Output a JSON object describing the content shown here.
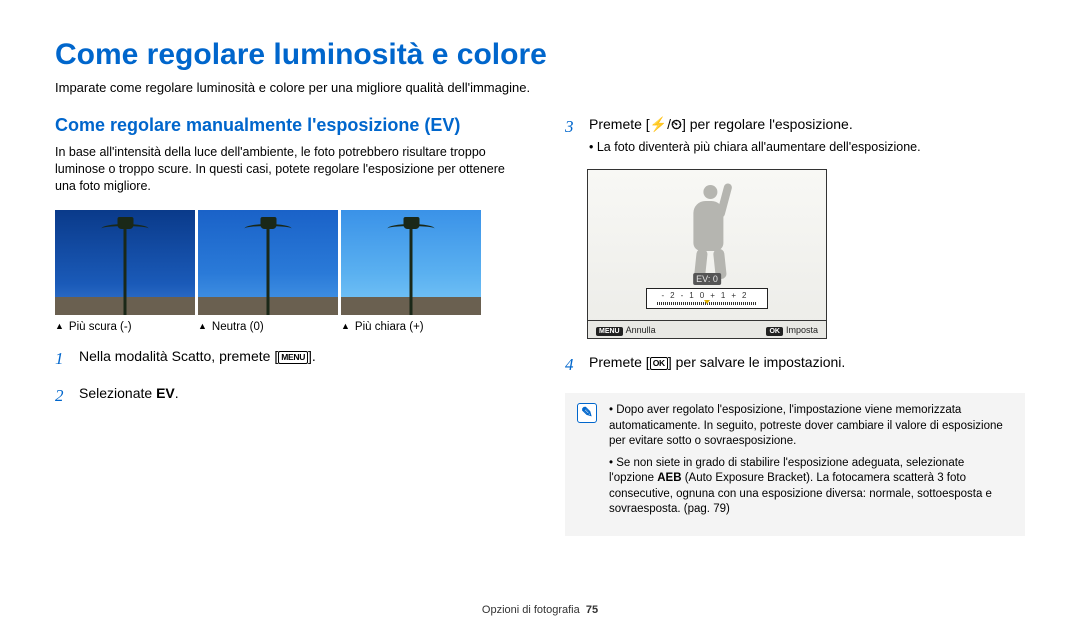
{
  "main_title": "Come regolare luminosità e colore",
  "intro": "Imparate come regolare luminosità e colore per una migliore qualità dell'immagine.",
  "left": {
    "subtitle": "Come regolare manualmente l'esposizione (EV)",
    "body": "In base all'intensità della luce dell'ambiente, le foto potrebbero risultare troppo luminose o troppo scure. In questi casi, potete regolare l'esposizione per ottenere una foto migliore.",
    "thumbs": [
      {
        "caption": "Più scura (-)",
        "style": "dark"
      },
      {
        "caption": "Neutra (0)",
        "style": "neutral"
      },
      {
        "caption": "Più chiara (+)",
        "style": "bright"
      }
    ],
    "steps": [
      {
        "num": "1",
        "text_pre": "Nella modalità Scatto, premete [",
        "key": "MENU",
        "text_post": "]."
      },
      {
        "num": "2",
        "text_pre": "Selezionate ",
        "bold": "EV",
        "text_post": "."
      }
    ]
  },
  "right": {
    "step3": {
      "num": "3",
      "text_pre": "Premete [",
      "icon1": "⚡",
      "sep": "/",
      "icon2": "⏲",
      "text_post": "] per regolare l'esposizione.",
      "bullet": "La foto diventerà più chiara all'aumentare dell'esposizione."
    },
    "screen": {
      "ev_label": "EV: 0",
      "ticks": [
        "-2",
        "-1",
        "0",
        "+1",
        "+2"
      ],
      "footer_left_key": "MENU",
      "footer_left": "Annulla",
      "footer_right_key": "OK",
      "footer_right": "Imposta"
    },
    "step4": {
      "num": "4",
      "text_pre": "Premete [",
      "key": "OK",
      "text_post": "] per salvare le impostazioni."
    },
    "notes": [
      "Dopo aver regolato l'esposizione, l'impostazione viene memorizzata automaticamente. In seguito, potreste dover cambiare il valore di esposizione per evitare sotto o sovraesposizione.",
      "Se non siete in grado di stabilire l'esposizione adeguata, selezionate l'opzione <b>AEB</b> (Auto Exposure Bracket). La fotocamera scatterà 3 foto consecutive, ognuna con una esposizione diversa: normale, sottoesposta e sovraesposta. (pag. 79)"
    ]
  },
  "footer": {
    "section": "Opzioni di fotografia",
    "page": "75"
  }
}
